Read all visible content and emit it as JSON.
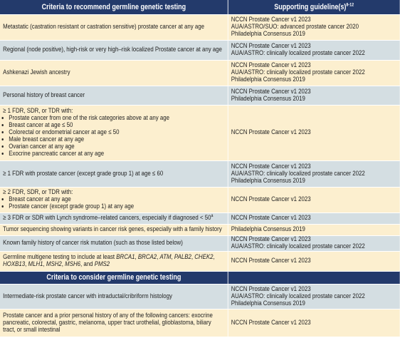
{
  "table": {
    "sections": [
      {
        "header": "Criteria to recommend germline genetic testing",
        "guideline_header": {
          "text": "Supporting guideline(s)",
          "sup": "8-12"
        },
        "rows": [
          {
            "criteria": {
              "text": "Metastatic (castration resistant or castration sensitive) prostate cancer at any age"
            },
            "guidelines": [
              "NCCN Prostate Cancer v1 2023",
              "AUA/ASTRO/SUO: advanced prostate cancer 2020",
              "Philadelphia Consensus 2019"
            ]
          },
          {
            "criteria": {
              "text": "Regional (node positive), high-risk or very high–risk localized Prostate cancer at any age"
            },
            "guidelines": [
              "NCCN Prostate Cancer v1 2023",
              "AUA/ASTRO: clinically localized prostate cancer 2022"
            ]
          },
          {
            "criteria": {
              "text": "Ashkenazi Jewish ancestry"
            },
            "guidelines": [
              "NCCN Prostate Cancer v1 2023",
              "AUA/ASTRO: clinically localized prostate cancer 2022",
              "Philadelphia Consensus 2019"
            ]
          },
          {
            "criteria": {
              "text": "Personal history of breast cancer"
            },
            "guidelines": [
              "NCCN Prostate Cancer v1 2023",
              "Philadelphia Consensus 2019"
            ]
          },
          {
            "criteria": {
              "text": "≥ 1 FDR, SDR, or TDR with:",
              "bullets": [
                "Prostate cancer from one of the risk categories above at any age",
                "Breast cancer at age ≤ 50",
                "Colorectal or endometrial cancer at age ≤ 50",
                "Male breast cancer at any age",
                "Ovarian cancer at any age",
                "Exocrine pancreatic cancer at any age"
              ]
            },
            "guidelines": [
              "NCCN Prostate Cancer v1 2023"
            ]
          },
          {
            "criteria": {
              "text": "≥ 1 FDR with prostate cancer (except grade group 1) at age ≤ 60"
            },
            "guidelines": [
              "NCCN Prostate Cancer v1 2023",
              "AUA/ASTRO: clinically localized prostate cancer 2022",
              "Philadelphia Consensus 2019"
            ]
          },
          {
            "criteria": {
              "text": "≥ 2 FDR, SDR, or TDR with:",
              "bullets": [
                "Breast cancer at any age",
                "Prostate cancer (except grade group 1) at any age"
              ]
            },
            "guidelines": [
              "NCCN Prostate Cancer v1 2023"
            ]
          },
          {
            "criteria": {
              "text": "≥ 3 FDR or SDR with Lynch syndrome–related cancers, especially if diagnosed < 50",
              "sup": "a"
            },
            "guidelines": [
              "NCCN Prostate Cancer v1 2023"
            ]
          },
          {
            "criteria": {
              "text": "Tumor sequencing showing variants in cancer risk genes, especially with a family history"
            },
            "guidelines": [
              "Philadelphia Consensus 2019"
            ]
          },
          {
            "criteria": {
              "text": "Known family history of cancer risk mutation (such as those listed below)"
            },
            "guidelines": [
              "NCCN Prostate Cancer v1 2023",
              "AUA/ASTRO: clinically localized prostate cancer 2022"
            ]
          },
          {
            "criteria": {
              "parts": [
                {
                  "text": "Germline multigene testing to include at least "
                },
                {
                  "text": "BRCA1",
                  "italic": true
                },
                {
                  "text": ", "
                },
                {
                  "text": "BRCA2",
                  "italic": true
                },
                {
                  "text": ", "
                },
                {
                  "text": "ATM",
                  "italic": true
                },
                {
                  "text": ", "
                },
                {
                  "text": "PALB2",
                  "italic": true
                },
                {
                  "text": ", "
                },
                {
                  "text": "CHEK2",
                  "italic": true
                },
                {
                  "text": ", "
                },
                {
                  "text": "HOXB13",
                  "italic": true
                },
                {
                  "text": ", "
                },
                {
                  "text": "MLH1",
                  "italic": true
                },
                {
                  "text": ", "
                },
                {
                  "text": "MSH2",
                  "italic": true
                },
                {
                  "text": ", "
                },
                {
                  "text": "MSH6",
                  "italic": true
                },
                {
                  "text": ", and "
                },
                {
                  "text": "PMS2",
                  "italic": true
                }
              ]
            },
            "guidelines": [
              "NCCN Prostate Cancer v1 2023"
            ]
          }
        ]
      },
      {
        "header": "Criteria to consider germline genetic testing",
        "rows": [
          {
            "criteria": {
              "text": "Intermediate-risk prostate cancer with intraductal/cribriform histology"
            },
            "guidelines": [
              "NCCN Prostate Cancer v1 2023",
              "AUA/ASTRO: clinically localized prostate cancer 2022",
              "Philadelphia Consensus 2019"
            ]
          },
          {
            "criteria": {
              "text": "Prostate cancer and a prior personal history of any of the following cancers: exocrine pancreatic, colorectal, gastric, melanoma, upper tract urothelial, glioblastoma, biliary tract, or small intestinal"
            },
            "guidelines": [
              "NCCN Prostate Cancer v1 2023"
            ]
          }
        ]
      }
    ]
  }
}
